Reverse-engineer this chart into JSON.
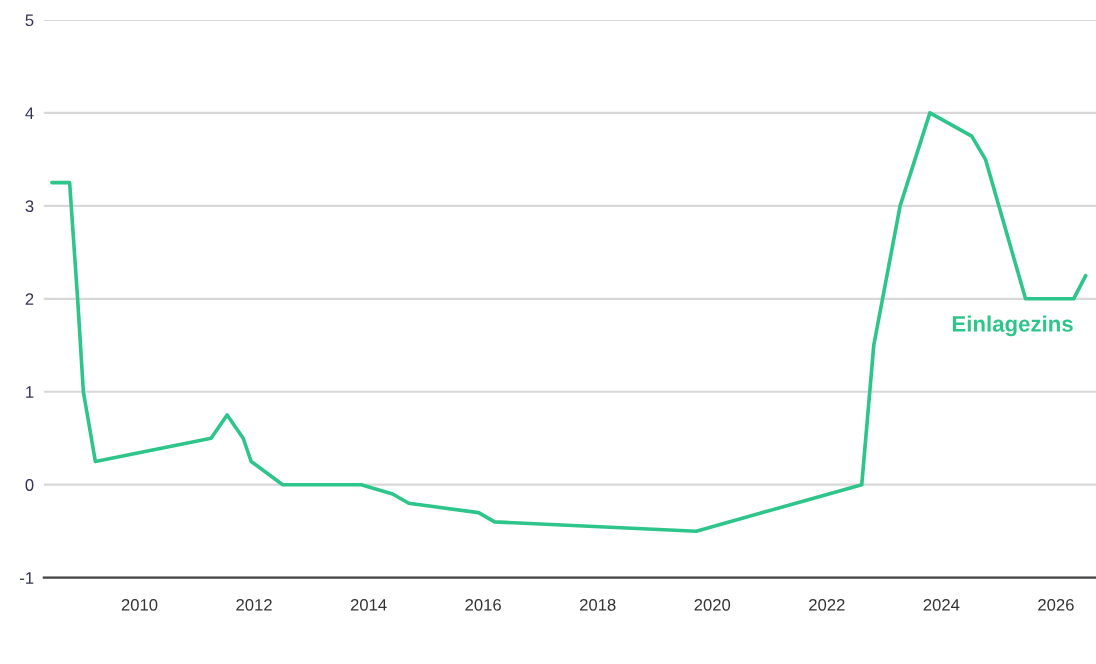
{
  "chart_data": {
    "type": "line",
    "series": [
      {
        "name": "Einlagezins",
        "color": "#2ec58a",
        "x": [
          2008.47,
          2008.78,
          2008.92,
          2009.02,
          2009.23,
          2011.25,
          2011.53,
          2011.81,
          2011.95,
          2012.5,
          2013.87,
          2014.42,
          2014.7,
          2015.92,
          2016.2,
          2019.72,
          2022.61,
          2022.82,
          2023.28,
          2023.8,
          2024.53,
          2024.77,
          2025.12,
          2025.47,
          2026.31,
          2026.52
        ],
        "values": [
          3.25,
          3.25,
          2.0,
          1.0,
          0.25,
          0.5,
          0.75,
          0.5,
          0.25,
          0,
          0,
          -0.1,
          -0.2,
          -0.3,
          -0.4,
          -0.5,
          0,
          1.5,
          3.0,
          4.0,
          3.75,
          3.5,
          2.75,
          2.0,
          2.0,
          2.25
        ]
      }
    ],
    "xlim": [
      2008.33,
      2026.7
    ],
    "xticks": [
      2010,
      2012,
      2014,
      2016,
      2018,
      2020,
      2022,
      2024,
      2026
    ],
    "ylim": [
      -1,
      5
    ],
    "yticks": [
      -1,
      0,
      1,
      2,
      3,
      4,
      5
    ],
    "grid": "y",
    "legend": false,
    "marker": "none",
    "line_style": "solid"
  }
}
